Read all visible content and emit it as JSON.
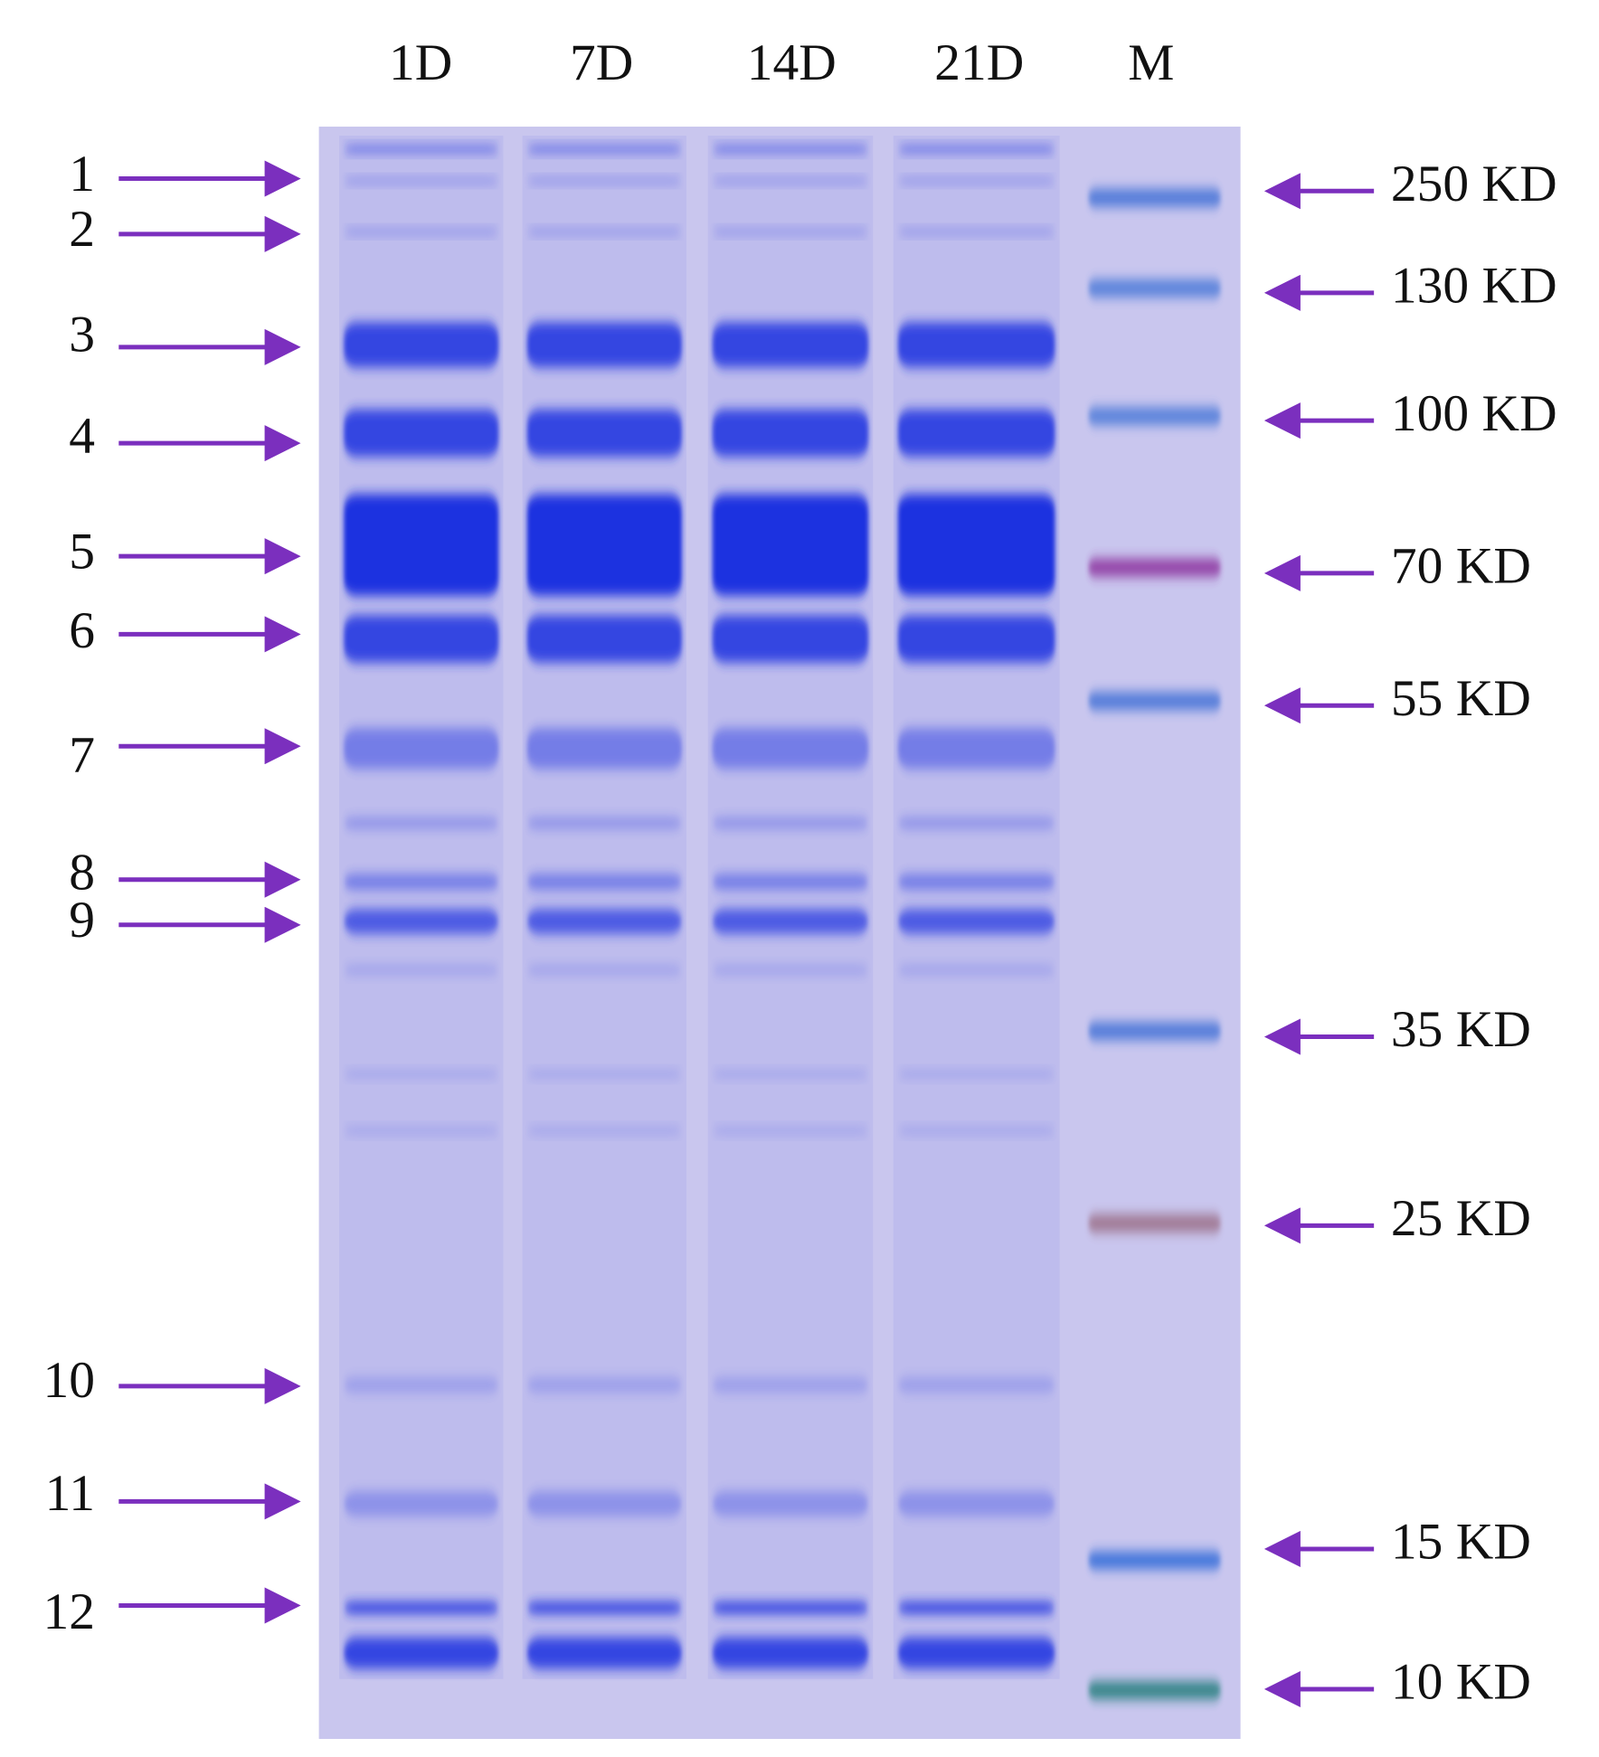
{
  "lanes": [
    "1D",
    "7D",
    "14D",
    "21D",
    "M"
  ],
  "band_numbers": [
    "1",
    "2",
    "3",
    "4",
    "5",
    "6",
    "7",
    "8",
    "9",
    "10",
    "11",
    "12"
  ],
  "markers": [
    "250 KD",
    "130 KD",
    "100 KD",
    "70 KD",
    "55 KD",
    "35 KD",
    "25 KD",
    "15 KD",
    "10 KD"
  ]
}
